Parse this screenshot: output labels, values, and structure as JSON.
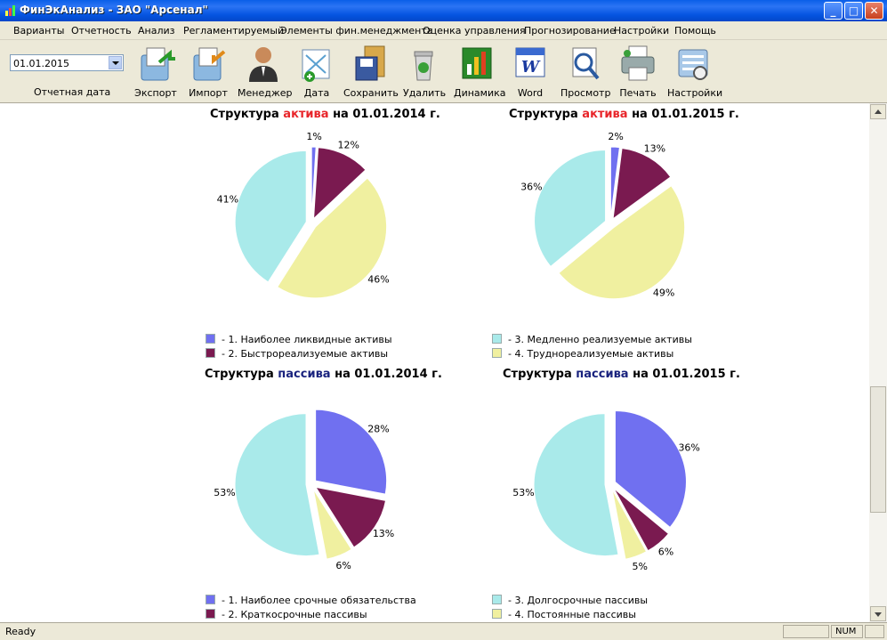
{
  "window": {
    "title": "ФинЭкАнализ - ЗАО \"Арсенал\""
  },
  "menu": [
    "Варианты",
    "Отчетность",
    "Анализ",
    "Регламентируемый",
    "Элементы фин.менеджмента",
    "Оценка управления",
    "Прогнозирование",
    "Настройки",
    "Помощь"
  ],
  "toolbar": {
    "date_value": "01.01.2015",
    "date_label": "Отчетная дата",
    "buttons": [
      "Экспорт",
      "Импорт",
      "Менеджер",
      "Дата",
      "Сохранить",
      "Удалить",
      "Динамика",
      "Word",
      "Просмотр",
      "Печать",
      "Настройки"
    ]
  },
  "status": {
    "text": "Ready",
    "num": "NUM"
  },
  "titles": {
    "assets_2014": {
      "pre": "Структура ",
      "hl": "актива",
      "post": " на 01.01.2014 г."
    },
    "assets_2015": {
      "pre": "Структура ",
      "hl": "актива",
      "post": " на 01.01.2015 г."
    },
    "liab_2014": {
      "pre": "Структура ",
      "hl": "пассива",
      "post": " на 01.01.2014 г."
    },
    "liab_2015": {
      "pre": "Структура ",
      "hl": "пассива",
      "post": " на 01.01.2015 г."
    }
  },
  "legends": {
    "assets": [
      "- 1. Наиболее ликвидные активы",
      "- 2. Быстрореализуемые активы",
      "- 3. Медленно реализуемые активы",
      "- 4. Труднореализуемые активы"
    ],
    "liabilities": [
      "- 1. Наиболее срочные обязательства",
      "- 2. Краткосрочные пассивы",
      "- 3. Долгосрочные пассивы",
      "- 4. Постоянные пассивы"
    ]
  },
  "colors": [
    "#7070f0",
    "#7a1a50",
    "#a9eaea",
    "#f0f0a0"
  ],
  "chart_data": [
    {
      "type": "pie",
      "title": "Структура актива на 01.01.2014 г.",
      "labels": [
        "- 1. Наиболее ликвидные активы",
        "- 2. Быстрореализуемые активы",
        "- 4. Труднореализуемые активы",
        "- 3. Медленно реализуемые активы"
      ],
      "values": [
        1,
        12,
        46,
        41
      ],
      "value_labels": [
        "1%",
        "12%",
        "46%",
        "41%"
      ]
    },
    {
      "type": "pie",
      "title": "Структура актива на 01.01.2015 г.",
      "labels": [
        "- 1. Наиболее ликвидные активы",
        "- 2. Быстрореализуемые активы",
        "- 4. Труднореализуемые активы",
        "- 3. Медленно реализуемые активы"
      ],
      "values": [
        2,
        13,
        49,
        36
      ],
      "value_labels": [
        "2%",
        "13%",
        "49%",
        "36%"
      ]
    },
    {
      "type": "pie",
      "title": "Структура пассива на 01.01.2014 г.",
      "labels": [
        "- 1. Наиболее срочные обязательства",
        "- 2. Краткосрочные пассивы",
        "- 4. Постоянные пассивы",
        "- 3. Долгосрочные пассивы"
      ],
      "values": [
        28,
        13,
        6,
        53
      ],
      "value_labels": [
        "28%",
        "13%",
        "6%",
        "53%"
      ]
    },
    {
      "type": "pie",
      "title": "Структура пассива на 01.01.2015 г.",
      "labels": [
        "- 1. Наиболее срочные обязательства",
        "- 2. Краткосрочные пассивы",
        "- 4. Постоянные пассивы",
        "- 3. Долгосрочные пассивы"
      ],
      "values": [
        36,
        6,
        5,
        53
      ],
      "value_labels": [
        "36%",
        "6%",
        "5%",
        "53%"
      ]
    }
  ]
}
